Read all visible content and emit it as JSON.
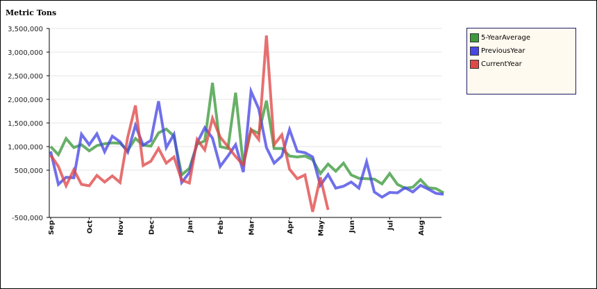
{
  "chart_data": {
    "type": "line",
    "ylabel": "Metric Tons",
    "ylim": [
      -500000,
      3500000
    ],
    "yticks": [
      -500000,
      500000,
      1000000,
      1500000,
      2000000,
      2500000,
      3000000,
      3500000
    ],
    "ytick_labels": [
      "-500,000",
      "500,000",
      "1,000,000",
      "1,500,000",
      "2,000,000",
      "2,500,000",
      "3,000,000",
      "3,500,000"
    ],
    "xticks": [
      {
        "label": "Sep",
        "x": 0
      },
      {
        "label": "Oct",
        "x": 5
      },
      {
        "label": "Nov",
        "x": 9
      },
      {
        "label": "Dec",
        "x": 13
      },
      {
        "label": "Jan",
        "x": 18
      },
      {
        "label": "Feb",
        "x": 22
      },
      {
        "label": "Mar",
        "x": 26
      },
      {
        "label": "Apr",
        "x": 31
      },
      {
        "label": "May",
        "x": 35
      },
      {
        "label": "Jun",
        "x": 39
      },
      {
        "label": "Jul",
        "x": 44
      },
      {
        "label": "Aug",
        "x": 48
      }
    ],
    "x_count": 52,
    "grid": true,
    "legend_position": "top-right",
    "series": [
      {
        "name": "5-YearAverage",
        "color": "#3c9a3c",
        "values": [
          1000000,
          830000,
          1170000,
          980000,
          1040000,
          910000,
          1020000,
          1060000,
          1080000,
          1070000,
          920000,
          1170000,
          1030000,
          1010000,
          1290000,
          1370000,
          1220000,
          400000,
          540000,
          1050000,
          1120000,
          2350000,
          1000000,
          960000,
          2140000,
          600000,
          1360000,
          1280000,
          1970000,
          960000,
          960000,
          800000,
          780000,
          800000,
          720000,
          430000,
          630000,
          480000,
          650000,
          400000,
          330000,
          320000,
          310000,
          210000,
          430000,
          200000,
          120000,
          140000,
          300000,
          130000,
          110000,
          20000
        ]
      },
      {
        "name": "PreviousYear",
        "color": "#4848e6",
        "values": [
          900000,
          200000,
          350000,
          340000,
          1260000,
          1040000,
          1270000,
          890000,
          1220000,
          1100000,
          880000,
          1450000,
          1030000,
          1130000,
          1960000,
          980000,
          1260000,
          240000,
          450000,
          1080000,
          1400000,
          1180000,
          580000,
          800000,
          1040000,
          460000,
          2170000,
          1800000,
          980000,
          650000,
          800000,
          1360000,
          900000,
          870000,
          780000,
          180000,
          410000,
          120000,
          160000,
          250000,
          120000,
          680000,
          40000,
          -70000,
          30000,
          20000,
          130000,
          40000,
          180000,
          100000,
          10000,
          -10000
        ]
      },
      {
        "name": "CurrentYear",
        "color": "#e04848",
        "values": [
          820000,
          580000,
          170000,
          510000,
          200000,
          170000,
          390000,
          250000,
          380000,
          240000,
          1200000,
          1870000,
          600000,
          690000,
          960000,
          650000,
          780000,
          290000,
          230000,
          1150000,
          930000,
          1600000,
          1200000,
          1000000,
          790000,
          610000,
          1360000,
          1150000,
          3350000,
          1040000,
          1250000,
          520000,
          320000,
          400000,
          -380000,
          350000,
          -340000
        ]
      }
    ]
  }
}
